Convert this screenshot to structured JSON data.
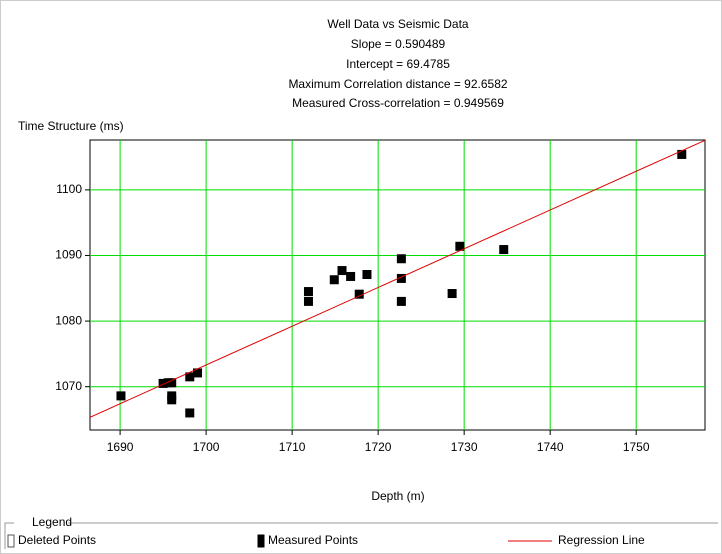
{
  "chart_data": {
    "type": "scatter",
    "title": "Well Data vs Seismic Data",
    "subtitle_lines": [
      "Slope = 0.590489",
      "Intercept = 69.4785",
      "Maximum Correlation distance = 92.6582",
      "Measured Cross-correlation = 0.949569"
    ],
    "y_label": "Time Structure (ms)",
    "x_label": "Depth (m)",
    "legend_title": "Legend",
    "legend": "bottom",
    "grid": true,
    "grid_color": "#00dd00",
    "xlim": [
      1686.5,
      1758
    ],
    "xticks": [
      1690,
      1700,
      1710,
      1720,
      1730,
      1740,
      1750
    ],
    "ylim": [
      1063.4,
      1107.6
    ],
    "yticks": [
      1070,
      1080,
      1090,
      1100
    ],
    "series": [
      {
        "name": "Deleted Points",
        "color": "#ffffff",
        "x": [],
        "values": []
      },
      {
        "name": "Measured Points",
        "color": "#000000",
        "x": [
          1690.1,
          1695,
          1695.6,
          1696,
          1696,
          1696,
          1698.1,
          1699,
          1698.1,
          1711.9,
          1711.9,
          1714.9,
          1715.8,
          1716.8,
          1717.8,
          1718.7,
          1722.7,
          1722.7,
          1722.7,
          1728.6,
          1729.5,
          1734.6,
          1755.3
        ],
        "values": [
          1068.6,
          1070.5,
          1070.6,
          1070.6,
          1068.6,
          1068,
          1071.5,
          1072.1,
          1066,
          1084.5,
          1083,
          1086.3,
          1087.7,
          1086.8,
          1084.1,
          1087.1,
          1089.5,
          1086.5,
          1083,
          1084.2,
          1091.4,
          1090.9,
          1105.4
        ]
      }
    ],
    "regression": {
      "name": "Regression Line",
      "color": "#e00000",
      "slope": 0.590489,
      "intercept": 69.4785
    }
  }
}
